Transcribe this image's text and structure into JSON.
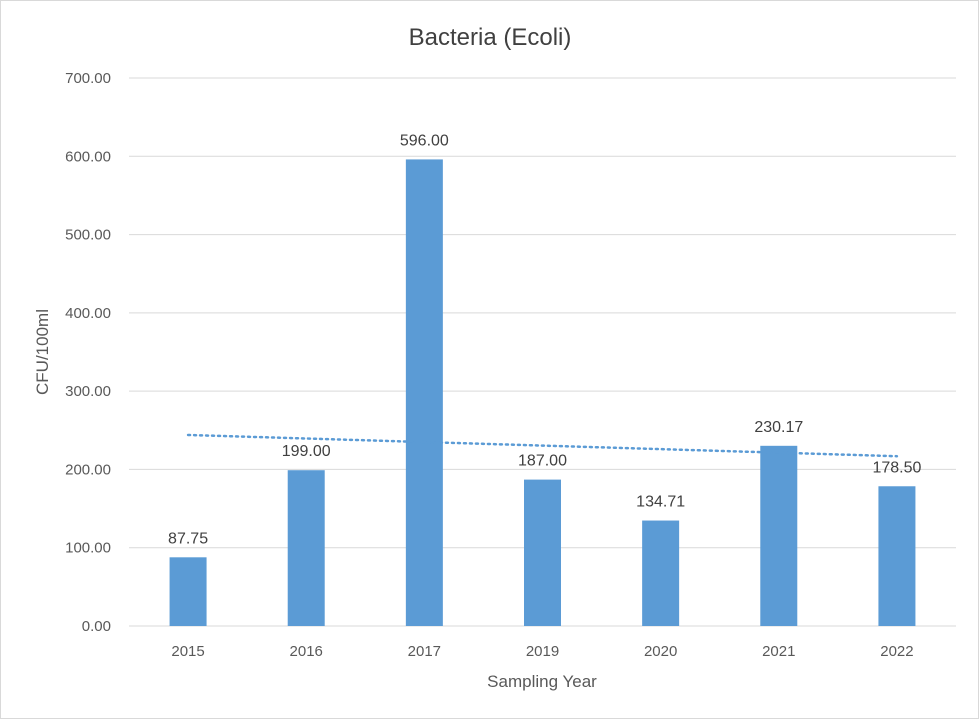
{
  "chart_data": {
    "type": "bar",
    "title": "Bacteria (Ecoli)",
    "xlabel": "Sampling Year",
    "ylabel": "CFU/100ml",
    "categories": [
      "2015",
      "2016",
      "2017",
      "2019",
      "2020",
      "2021",
      "2022"
    ],
    "values": [
      87.75,
      199.0,
      596.0,
      187.0,
      134.71,
      230.17,
      178.5
    ],
    "data_labels": [
      "87.75",
      "199.00",
      "596.00",
      "187.00",
      "134.71",
      "230.17",
      "178.50"
    ],
    "ylim": [
      0,
      700
    ],
    "yticks": [
      0,
      100,
      200,
      300,
      400,
      500,
      600,
      700
    ],
    "ytick_labels": [
      "0.00",
      "100.00",
      "200.00",
      "300.00",
      "400.00",
      "500.00",
      "600.00",
      "700.00"
    ],
    "grid": true,
    "legend": "none",
    "trendline": {
      "type": "linear",
      "style": "dotted"
    },
    "colors": {
      "bar": "#5b9bd5",
      "trendline": "#5b9bd5",
      "grid": "#d9d9d9"
    }
  }
}
